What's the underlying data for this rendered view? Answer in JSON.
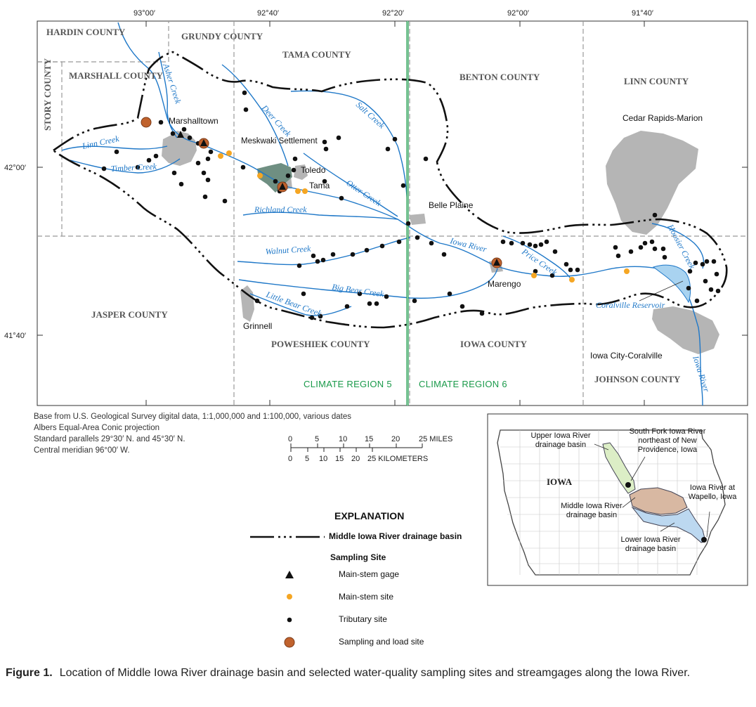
{
  "map": {
    "lon_ticks": [
      "93°00′",
      "92°40′",
      "92°20′",
      "92°00′",
      "91°40′"
    ],
    "lat_ticks": [
      "42°00′",
      "41°40′"
    ],
    "counties": {
      "hardin": "HARDIN COUNTY",
      "grundy": "GRUNDY COUNTY",
      "tama": "TAMA COUNTY",
      "marshall": "MARSHALL COUNTY",
      "story": "STORY COUNTY",
      "benton": "BENTON COUNTY",
      "linn": "LINN COUNTY",
      "jasper": "JASPER COUNTY",
      "poweshiek": "POWESHIEK COUNTY",
      "iowa": "IOWA COUNTY",
      "johnson": "JOHNSON COUNTY"
    },
    "towns": {
      "marshalltown": "Marshalltown",
      "meskwaki": "Meskwaki Settlement",
      "toledo": "Toledo",
      "tama": "Tama",
      "belle_plaine": "Belle Plaine",
      "marengo": "Marengo",
      "grinnell": "Grinnell",
      "cedar_rapids": "Cedar Rapids-Marion",
      "iowa_city": "Iowa City-Coralville"
    },
    "streams": {
      "asher": "Asher Creek",
      "linn": "Linn Creek",
      "timber": "Timber Creek",
      "deer": "Deer Creek",
      "salt": "Salt Creek",
      "otter": "Otter Creek",
      "richland": "Richland Creek",
      "walnut": "Walnut Creek",
      "big_bear": "Big Bear Creek",
      "little_bear": "Little Bear Creek",
      "iowa_river": "Iowa River",
      "price": "Price Creek",
      "hoosier": "Hoosier Creek",
      "coralville": "Coralville Reservoir"
    },
    "climate_regions": [
      "CLIMATE REGION 5",
      "CLIMATE REGION 6"
    ],
    "colors": {
      "stream": "#1f78c8",
      "urban": "#b5b5b5",
      "climate_line": "#1a9a4a",
      "main_stem_site": "#f5a623",
      "load_site": "#c0622d"
    }
  },
  "base_note": [
    "Base from U.S. Geological Survey digital data, 1:1,000,000 and 1:100,000, various dates",
    "Albers Equal-Area Conic projection",
    "Standard parallels 29°30′ N. and 45°30′ N.",
    "Central meridian 96°00′ W."
  ],
  "scale": {
    "miles_ticks": [
      "0",
      "5",
      "10",
      "15",
      "20",
      "25 MILES"
    ],
    "km_ticks": [
      "0",
      "5",
      "10",
      "15",
      "20",
      "25 KILOMETERS"
    ]
  },
  "explanation": {
    "title": "EXPLANATION",
    "basin_line": "Middle Iowa River drainage basin",
    "sampling_header": "Sampling Site",
    "items": [
      "Main-stem gage",
      "Main-stem site",
      "Tributary site",
      "Sampling and load site"
    ]
  },
  "inset": {
    "state": "IOWA",
    "upper": "Upper Iowa River drainage basin",
    "south_fork": "South Fork Iowa River northeast of New Providence, Iowa",
    "wapello": "Iowa River at Wapello, Iowa",
    "middle": "Middle Iowa River drainage basin",
    "lower": "Lower Iowa River drainage basin"
  },
  "caption": {
    "figure_label": "Figure 1.",
    "text": "Location of Middle Iowa River drainage basin and selected water-quality sampling sites and streamgages along the Iowa River."
  }
}
